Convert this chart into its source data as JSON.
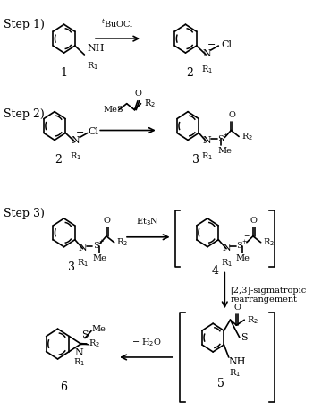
{
  "bg_color": "#ffffff",
  "line_color": "#000000",
  "step1_label": "Step 1)",
  "step2_label": "Step 2)",
  "step3_label": "Step 3)",
  "reagent1": "$^{t}$BuOCl",
  "reagent3": "Et$_3$N",
  "reagent4": "[2,3]-sigmatropic\nrearrangement",
  "reagent5": "$-$ H$_2$O",
  "fs": 8,
  "fs_step": 9,
  "fs_small": 7
}
